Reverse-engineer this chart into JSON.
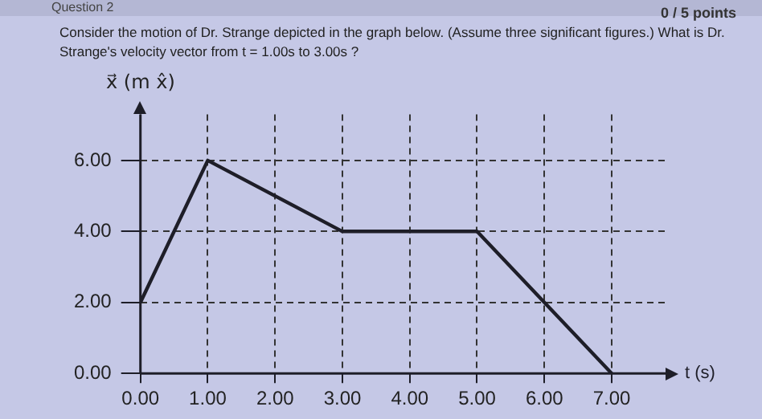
{
  "chart_data": {
    "type": "line",
    "title": "Consider the motion of Dr. Strange depicted in the graph below. (Assume three significant figures.) What is Dr. Strange's velocity vector from t = 1.00s to 3.00s ?",
    "annotations": [
      "Question 2",
      "0 / 5 points"
    ],
    "xlabel": "t (s)",
    "ylabel": "x⃗ (m x̂)",
    "x": [
      0,
      1,
      3,
      5,
      6,
      7
    ],
    "series": [
      {
        "color": "#1e1e28",
        "values": [
          2,
          6,
          4,
          4,
          2,
          0
        ]
      }
    ],
    "xlim": [
      0,
      7.8
    ],
    "ylim": [
      0,
      7.3
    ],
    "xticks": [
      {
        "value": 0,
        "label": "0.00"
      },
      {
        "value": 1,
        "label": "1.00"
      },
      {
        "value": 2,
        "label": "2.00"
      },
      {
        "value": 3,
        "label": "3.00"
      },
      {
        "value": 4,
        "label": "4.00"
      },
      {
        "value": 5,
        "label": "5.00"
      },
      {
        "value": 6,
        "label": "6.00"
      },
      {
        "value": 7,
        "label": "7.00"
      }
    ],
    "yticks": [
      {
        "value": 0,
        "label": "0.00"
      },
      {
        "value": 2,
        "label": "2.00"
      },
      {
        "value": 4,
        "label": "4.00"
      },
      {
        "value": 6,
        "label": "6.00"
      }
    ],
    "grid": true,
    "legend": false,
    "marker": "none",
    "line_style": "solid"
  }
}
